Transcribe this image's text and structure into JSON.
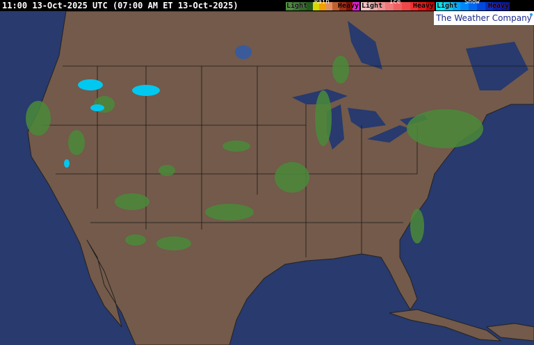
{
  "header": {
    "timestamp": "11:00 13-Oct-2025 UTC  (07:00 AM ET 13-Oct-2025)"
  },
  "legend": [
    {
      "title": "Rain",
      "light": "Light",
      "heavy": "Heavy",
      "colors": [
        "#4a8a3a",
        "#3a7a2e",
        "#2e6a24",
        "#245a1a",
        "#d8d800",
        "#f0a000",
        "#e09060",
        "#c06030",
        "#a03010",
        "#801000",
        "#e020e0"
      ]
    },
    {
      "title": "Ice",
      "light": "Light",
      "heavy": "Heavy",
      "colors": [
        "#f4c0c0",
        "#f0a8a8",
        "#f09090",
        "#f07878",
        "#f06060",
        "#f04848",
        "#f03030",
        "#e01818",
        "#d00000"
      ]
    },
    {
      "title": "Snow",
      "light": "Light",
      "heavy": "Heavy",
      "colors": [
        "#00e8f0",
        "#00c8f8",
        "#00a8f8",
        "#0088f8",
        "#0068f0",
        "#0048e0",
        "#0030c8",
        "#0020b0",
        "#001898"
      ]
    }
  ],
  "brand": "The Weather Company",
  "map_colors": {
    "ocean": "#283a6e",
    "land": "#735a4a",
    "borders": "#1a1a1a"
  }
}
